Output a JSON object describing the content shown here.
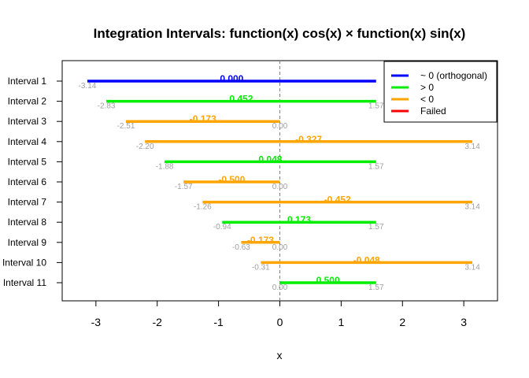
{
  "chart_data": {
    "type": "line",
    "title": "Integration Intervals: function(x) cos(x) × function(x) sin(x)",
    "xlabel": "x",
    "ylabel": "",
    "xlim": [
      -3.55,
      3.55
    ],
    "x_ticks": [
      -3,
      -2,
      -1,
      0,
      1,
      2,
      3
    ],
    "reference_line": {
      "x": 0,
      "style": "dashed",
      "color": "#808080"
    },
    "colors": {
      "orthogonal": "#0000ff",
      "positive": "#00ee00",
      "negative": "#ffa500",
      "failed": "#ff0000"
    },
    "legend": {
      "placement": "top-right",
      "entries": [
        {
          "label": "~ 0 (orthogonal)",
          "category": "orthogonal"
        },
        {
          "label": "> 0",
          "category": "positive"
        },
        {
          "label": "< 0",
          "category": "negative"
        },
        {
          "label": "Failed",
          "category": "failed"
        }
      ]
    },
    "intervals": [
      {
        "label": "Interval 1",
        "x_start": -3.14,
        "x_end": 1.57,
        "start_label": "-3.14",
        "end_label": "",
        "value_label": "0.000",
        "category": "orthogonal"
      },
      {
        "label": "Interval 2",
        "x_start": -2.83,
        "x_end": 1.57,
        "start_label": "-2.83",
        "end_label": "1.57",
        "value_label": "0.452",
        "category": "positive"
      },
      {
        "label": "Interval 3",
        "x_start": -2.51,
        "x_end": 0.0,
        "start_label": "-2.51",
        "end_label": "0.00",
        "value_label": "-0.173",
        "category": "negative"
      },
      {
        "label": "Interval 4",
        "x_start": -2.2,
        "x_end": 3.14,
        "start_label": "-2.20",
        "end_label": "3.14",
        "value_label": "-0.327",
        "category": "negative"
      },
      {
        "label": "Interval 5",
        "x_start": -1.88,
        "x_end": 1.57,
        "start_label": "-1.88",
        "end_label": "1.57",
        "value_label": "0.048",
        "category": "positive"
      },
      {
        "label": "Interval 6",
        "x_start": -1.57,
        "x_end": 0.0,
        "start_label": "-1.57",
        "end_label": "0.00",
        "value_label": "-0.500",
        "category": "negative"
      },
      {
        "label": "Interval 7",
        "x_start": -1.26,
        "x_end": 3.14,
        "start_label": "-1.26",
        "end_label": "3.14",
        "value_label": "-0.452",
        "category": "negative"
      },
      {
        "label": "Interval 8",
        "x_start": -0.94,
        "x_end": 1.57,
        "start_label": "-0.94",
        "end_label": "1.57",
        "value_label": "0.173",
        "category": "positive"
      },
      {
        "label": "Interval 9",
        "x_start": -0.63,
        "x_end": 0.0,
        "start_label": "-0.63",
        "end_label": "0.00",
        "value_label": "-0.173",
        "category": "negative"
      },
      {
        "label": "Interval 10",
        "x_start": -0.31,
        "x_end": 3.14,
        "start_label": "-0.31",
        "end_label": "3.14",
        "value_label": "-0.048",
        "category": "negative"
      },
      {
        "label": "Interval 11",
        "x_start": 0.0,
        "x_end": 1.57,
        "start_label": "0.00",
        "end_label": "1.57",
        "value_label": "0.500",
        "category": "positive"
      }
    ]
  }
}
